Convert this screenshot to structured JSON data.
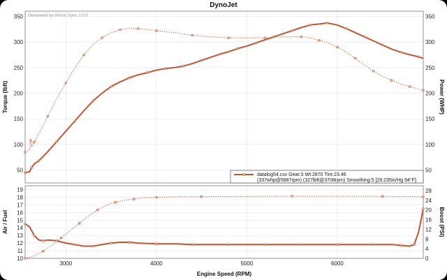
{
  "header": {
    "title": "DynoJet",
    "generator": "Generated by Virtual Dyno 1.0.0"
  },
  "legend": {
    "line1": "datalog54.csv Gear:3 Wt:2870 Tire:23.46",
    "line2": "(337whp@5887rpm) (327lbft@3708rpm) Smoothing:5 [29.235in/Hg 94°F]"
  },
  "colors": {
    "trace": "#c4542e",
    "grid": "#e3e3e3",
    "frame": "#777777"
  },
  "chart_data": [
    {
      "type": "line",
      "panel": "top",
      "xlabel": "Engine Speed (RPM)",
      "ylabel": "Torque (lbft)",
      "y2label": "Power (WHP)",
      "xlim": [
        2550,
        6950
      ],
      "ylim": [
        25,
        360
      ],
      "y2lim": [
        25,
        360
      ],
      "xticks": [
        3000,
        4000,
        5000,
        6000
      ],
      "yticks": [
        50,
        100,
        150,
        200,
        250,
        300,
        350
      ],
      "y2ticks": [
        50,
        100,
        150,
        200,
        250,
        300,
        350
      ],
      "grid": true,
      "legend_position": "bottom-right",
      "series": [
        {
          "axis": "right",
          "style": "solid",
          "x": [
            2550,
            2600,
            2620,
            2650,
            2700,
            2800,
            2900,
            3000,
            3100,
            3200,
            3300,
            3400,
            3500,
            3600,
            3700,
            3800,
            3900,
            4000,
            4100,
            4200,
            4300,
            4400,
            4500,
            4600,
            4700,
            4800,
            4900,
            5000,
            5100,
            5200,
            5300,
            5400,
            5500,
            5600,
            5700,
            5800,
            5887,
            6000,
            6100,
            6200,
            6300,
            6400,
            6500,
            6600,
            6700,
            6800,
            6900,
            6950
          ],
          "values": [
            45,
            47,
            55,
            62,
            68,
            86,
            106,
            126,
            146,
            166,
            185,
            200,
            213,
            222,
            230,
            236,
            240,
            245,
            248,
            250,
            253,
            258,
            264,
            270,
            276,
            281,
            287,
            292,
            298,
            304,
            310,
            316,
            322,
            328,
            333,
            335,
            337,
            333,
            326,
            318,
            310,
            302,
            294,
            286,
            280,
            275,
            271,
            268
          ]
        },
        {
          "axis": "left",
          "style": "dotted",
          "x": [
            2550,
            2600,
            2610,
            2620,
            2650,
            2700,
            2800,
            2900,
            3000,
            3100,
            3200,
            3300,
            3400,
            3500,
            3600,
            3708,
            3800,
            3900,
            4000,
            4200,
            4400,
            4600,
            4800,
            5000,
            5200,
            5400,
            5600,
            5700,
            5800,
            5900,
            6000,
            6100,
            6200,
            6300,
            6400,
            6500,
            6600,
            6700,
            6800,
            6900,
            6950
          ],
          "values": [
            85,
            90,
            108,
            95,
            105,
            120,
            155,
            190,
            220,
            250,
            275,
            295,
            308,
            318,
            324,
            327,
            326,
            324,
            322,
            318,
            313,
            310,
            308,
            308,
            308,
            310,
            310,
            308,
            303,
            298,
            290,
            280,
            268,
            255,
            243,
            233,
            225,
            218,
            213,
            208,
            206
          ]
        }
      ]
    },
    {
      "type": "line",
      "panel": "bottom",
      "xlabel": "Engine Speed (RPM)",
      "ylabel": "Air / Fuel",
      "y2label": "Boost (PSI)",
      "xlim": [
        2550,
        6950
      ],
      "ylim": [
        10,
        19.5
      ],
      "y2lim": [
        0,
        30
      ],
      "xticks": [
        3000,
        4000,
        5000,
        6000
      ],
      "yticks": [
        10,
        11,
        12,
        13,
        14,
        15,
        16,
        17,
        18,
        19
      ],
      "y2ticks": [
        0,
        4,
        8,
        12,
        16,
        20,
        24,
        28
      ],
      "grid": true,
      "series": [
        {
          "axis": "left",
          "style": "solid",
          "x": [
            2550,
            2600,
            2650,
            2700,
            2750,
            2800,
            2900,
            3000,
            3100,
            3200,
            3300,
            3400,
            3500,
            3600,
            3700,
            3800,
            4000,
            4200,
            4400,
            4600,
            4800,
            5000,
            5200,
            5400,
            5600,
            5800,
            6000,
            6200,
            6400,
            6600,
            6700,
            6800,
            6850,
            6900,
            6950
          ],
          "values": [
            14.5,
            14.1,
            13.0,
            12.4,
            12.3,
            12.4,
            12.3,
            12.0,
            11.8,
            11.6,
            11.6,
            11.8,
            12.0,
            12.1,
            12.1,
            12.0,
            11.9,
            11.9,
            11.8,
            11.8,
            11.8,
            11.8,
            11.8,
            11.8,
            11.8,
            11.8,
            11.8,
            11.8,
            11.8,
            11.8,
            11.7,
            11.6,
            11.8,
            13.5,
            16.5
          ]
        },
        {
          "axis": "right",
          "style": "dotted",
          "x": [
            2550,
            2650,
            2750,
            2850,
            2950,
            3050,
            3150,
            3250,
            3350,
            3450,
            3550,
            3650,
            3750,
            3850,
            4000,
            4200,
            4500,
            5000,
            5500,
            6000,
            6500,
            6900,
            6950
          ],
          "values": [
            0,
            1.0,
            3.0,
            5.5,
            8.5,
            11.5,
            14.5,
            17.5,
            20.0,
            22.0,
            23.2,
            24.0,
            24.5,
            25.0,
            25.2,
            25.4,
            25.5,
            25.6,
            25.7,
            25.7,
            25.6,
            25.5,
            25.4
          ]
        }
      ]
    }
  ]
}
